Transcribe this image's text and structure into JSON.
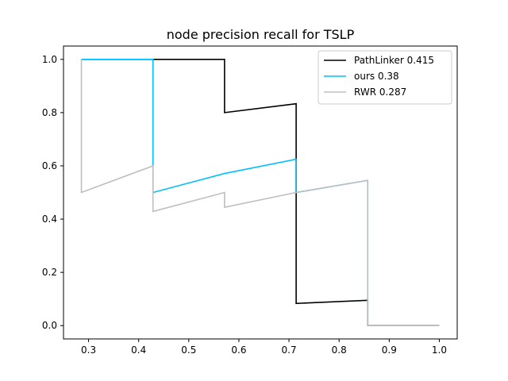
{
  "chart_data": {
    "type": "line",
    "title": "node precision recall for TSLP",
    "xlabel": "",
    "ylabel": "",
    "xlim": [
      0.25,
      1.0357
    ],
    "ylim": [
      -0.05,
      1.05
    ],
    "x_ticks": [
      0.3,
      0.4,
      0.5,
      0.6,
      0.7,
      0.8,
      0.9,
      1.0
    ],
    "x_tick_labels": [
      "0.3",
      "0.4",
      "0.5",
      "0.6",
      "0.7",
      "0.8",
      "0.9",
      "1.0"
    ],
    "y_ticks": [
      0.0,
      0.2,
      0.4,
      0.6,
      0.8,
      1.0
    ],
    "y_tick_labels": [
      "0.0",
      "0.2",
      "0.4",
      "0.6",
      "0.8",
      "1.0"
    ],
    "grid": false,
    "legend_position": "top-right",
    "series": [
      {
        "name": "PathLinker 0.415",
        "color": "#000000",
        "x": [
          0.2857,
          0.4286,
          0.5714,
          0.5714,
          0.7143,
          0.7143,
          0.7143,
          0.8571,
          0.8571,
          1.0
        ],
        "y": [
          1.0,
          1.0,
          1.0,
          0.8,
          0.8333,
          0.5,
          0.0833,
          0.0952,
          0.0,
          0.0
        ]
      },
      {
        "name": "ours 0.38",
        "color": "#00bfff",
        "x": [
          0.2857,
          0.2857,
          0.4286,
          0.4286,
          0.5714,
          0.7143,
          0.7143,
          0.8571,
          0.8571,
          1.0
        ],
        "y": [
          1.0,
          1.0,
          1.0,
          0.5,
          0.5714,
          0.625,
          0.5,
          0.5454,
          0.0,
          0.0
        ]
      },
      {
        "name": "RWR 0.287",
        "color": "#bfbfbf",
        "x": [
          0.2857,
          0.2857,
          0.4286,
          0.4286,
          0.5714,
          0.5714,
          0.7143,
          0.8571,
          0.8571,
          1.0
        ],
        "y": [
          1.0,
          0.5,
          0.6,
          0.4286,
          0.5,
          0.4444,
          0.5,
          0.5454,
          0.0,
          0.0
        ]
      }
    ]
  }
}
